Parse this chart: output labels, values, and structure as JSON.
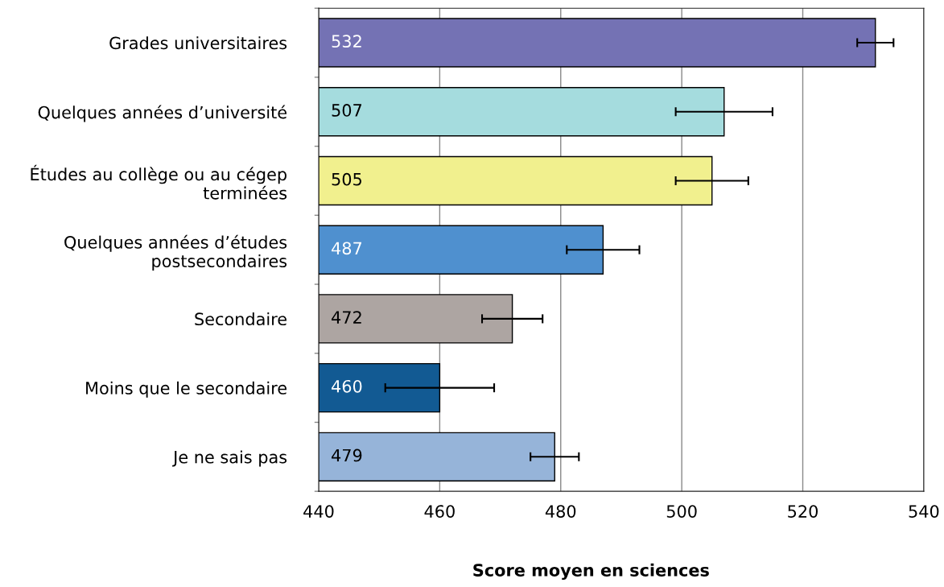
{
  "chart_data": {
    "type": "bar",
    "orientation": "horizontal",
    "xlabel": "Score moyen en sciences",
    "categories": [
      "Grades universitaires",
      "Quelques années d’université",
      "Études au collège ou au cégep\nterminées",
      "Quelques années d’études\npostsecondaires",
      "Secondaire",
      "Moins que le secondaire",
      "Je ne sais pas"
    ],
    "values": [
      532,
      507,
      505,
      487,
      472,
      460,
      479
    ],
    "colors": [
      "#7472b4",
      "#a5dcde",
      "#f1f08e",
      "#4f90cf",
      "#ada5a2",
      "#125a93",
      "#96b4d9"
    ],
    "errors": [
      [
        529,
        535
      ],
      [
        499,
        515
      ],
      [
        499,
        511
      ],
      [
        481,
        493
      ],
      [
        467,
        477
      ],
      [
        451,
        469
      ],
      [
        475,
        483
      ]
    ],
    "data_labels": true,
    "xlim": [
      440,
      540
    ],
    "xticks": [
      440,
      460,
      480,
      500,
      520,
      540
    ],
    "grid": "x",
    "legend": false
  }
}
